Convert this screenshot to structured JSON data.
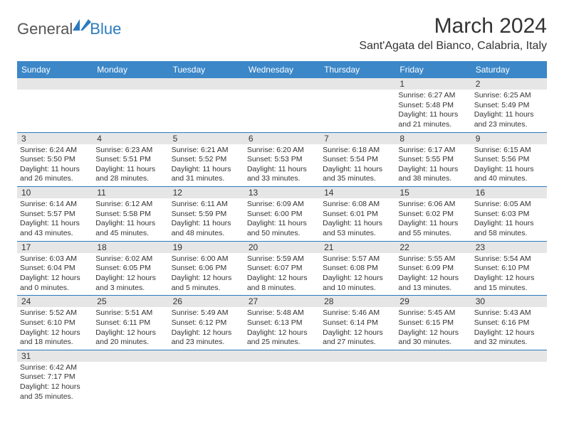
{
  "logo": {
    "general": "General",
    "blue": "Blue"
  },
  "header": {
    "title": "March 2024",
    "location": "Sant'Agata del Bianco, Calabria, Italy"
  },
  "colors": {
    "header_bg": "#3b87c8",
    "header_text": "#ffffff",
    "date_row_bg": "#e6e6e6",
    "cell_border": "#2b7bbf",
    "body_text": "#333333",
    "logo_blue": "#2b7bbf",
    "logo_gray": "#555555"
  },
  "day_names": [
    "Sunday",
    "Monday",
    "Tuesday",
    "Wednesday",
    "Thursday",
    "Friday",
    "Saturday"
  ],
  "weeks": [
    {
      "nums": [
        "",
        "",
        "",
        "",
        "",
        "1",
        "2"
      ],
      "cells": [
        {},
        {},
        {},
        {},
        {},
        {
          "sunrise": "Sunrise: 6:27 AM",
          "sunset": "Sunset: 5:48 PM",
          "day1": "Daylight: 11 hours",
          "day2": "and 21 minutes."
        },
        {
          "sunrise": "Sunrise: 6:25 AM",
          "sunset": "Sunset: 5:49 PM",
          "day1": "Daylight: 11 hours",
          "day2": "and 23 minutes."
        }
      ]
    },
    {
      "nums": [
        "3",
        "4",
        "5",
        "6",
        "7",
        "8",
        "9"
      ],
      "cells": [
        {
          "sunrise": "Sunrise: 6:24 AM",
          "sunset": "Sunset: 5:50 PM",
          "day1": "Daylight: 11 hours",
          "day2": "and 26 minutes."
        },
        {
          "sunrise": "Sunrise: 6:23 AM",
          "sunset": "Sunset: 5:51 PM",
          "day1": "Daylight: 11 hours",
          "day2": "and 28 minutes."
        },
        {
          "sunrise": "Sunrise: 6:21 AM",
          "sunset": "Sunset: 5:52 PM",
          "day1": "Daylight: 11 hours",
          "day2": "and 31 minutes."
        },
        {
          "sunrise": "Sunrise: 6:20 AM",
          "sunset": "Sunset: 5:53 PM",
          "day1": "Daylight: 11 hours",
          "day2": "and 33 minutes."
        },
        {
          "sunrise": "Sunrise: 6:18 AM",
          "sunset": "Sunset: 5:54 PM",
          "day1": "Daylight: 11 hours",
          "day2": "and 35 minutes."
        },
        {
          "sunrise": "Sunrise: 6:17 AM",
          "sunset": "Sunset: 5:55 PM",
          "day1": "Daylight: 11 hours",
          "day2": "and 38 minutes."
        },
        {
          "sunrise": "Sunrise: 6:15 AM",
          "sunset": "Sunset: 5:56 PM",
          "day1": "Daylight: 11 hours",
          "day2": "and 40 minutes."
        }
      ]
    },
    {
      "nums": [
        "10",
        "11",
        "12",
        "13",
        "14",
        "15",
        "16"
      ],
      "cells": [
        {
          "sunrise": "Sunrise: 6:14 AM",
          "sunset": "Sunset: 5:57 PM",
          "day1": "Daylight: 11 hours",
          "day2": "and 43 minutes."
        },
        {
          "sunrise": "Sunrise: 6:12 AM",
          "sunset": "Sunset: 5:58 PM",
          "day1": "Daylight: 11 hours",
          "day2": "and 45 minutes."
        },
        {
          "sunrise": "Sunrise: 6:11 AM",
          "sunset": "Sunset: 5:59 PM",
          "day1": "Daylight: 11 hours",
          "day2": "and 48 minutes."
        },
        {
          "sunrise": "Sunrise: 6:09 AM",
          "sunset": "Sunset: 6:00 PM",
          "day1": "Daylight: 11 hours",
          "day2": "and 50 minutes."
        },
        {
          "sunrise": "Sunrise: 6:08 AM",
          "sunset": "Sunset: 6:01 PM",
          "day1": "Daylight: 11 hours",
          "day2": "and 53 minutes."
        },
        {
          "sunrise": "Sunrise: 6:06 AM",
          "sunset": "Sunset: 6:02 PM",
          "day1": "Daylight: 11 hours",
          "day2": "and 55 minutes."
        },
        {
          "sunrise": "Sunrise: 6:05 AM",
          "sunset": "Sunset: 6:03 PM",
          "day1": "Daylight: 11 hours",
          "day2": "and 58 minutes."
        }
      ]
    },
    {
      "nums": [
        "17",
        "18",
        "19",
        "20",
        "21",
        "22",
        "23"
      ],
      "cells": [
        {
          "sunrise": "Sunrise: 6:03 AM",
          "sunset": "Sunset: 6:04 PM",
          "day1": "Daylight: 12 hours",
          "day2": "and 0 minutes."
        },
        {
          "sunrise": "Sunrise: 6:02 AM",
          "sunset": "Sunset: 6:05 PM",
          "day1": "Daylight: 12 hours",
          "day2": "and 3 minutes."
        },
        {
          "sunrise": "Sunrise: 6:00 AM",
          "sunset": "Sunset: 6:06 PM",
          "day1": "Daylight: 12 hours",
          "day2": "and 5 minutes."
        },
        {
          "sunrise": "Sunrise: 5:59 AM",
          "sunset": "Sunset: 6:07 PM",
          "day1": "Daylight: 12 hours",
          "day2": "and 8 minutes."
        },
        {
          "sunrise": "Sunrise: 5:57 AM",
          "sunset": "Sunset: 6:08 PM",
          "day1": "Daylight: 12 hours",
          "day2": "and 10 minutes."
        },
        {
          "sunrise": "Sunrise: 5:55 AM",
          "sunset": "Sunset: 6:09 PM",
          "day1": "Daylight: 12 hours",
          "day2": "and 13 minutes."
        },
        {
          "sunrise": "Sunrise: 5:54 AM",
          "sunset": "Sunset: 6:10 PM",
          "day1": "Daylight: 12 hours",
          "day2": "and 15 minutes."
        }
      ]
    },
    {
      "nums": [
        "24",
        "25",
        "26",
        "27",
        "28",
        "29",
        "30"
      ],
      "cells": [
        {
          "sunrise": "Sunrise: 5:52 AM",
          "sunset": "Sunset: 6:10 PM",
          "day1": "Daylight: 12 hours",
          "day2": "and 18 minutes."
        },
        {
          "sunrise": "Sunrise: 5:51 AM",
          "sunset": "Sunset: 6:11 PM",
          "day1": "Daylight: 12 hours",
          "day2": "and 20 minutes."
        },
        {
          "sunrise": "Sunrise: 5:49 AM",
          "sunset": "Sunset: 6:12 PM",
          "day1": "Daylight: 12 hours",
          "day2": "and 23 minutes."
        },
        {
          "sunrise": "Sunrise: 5:48 AM",
          "sunset": "Sunset: 6:13 PM",
          "day1": "Daylight: 12 hours",
          "day2": "and 25 minutes."
        },
        {
          "sunrise": "Sunrise: 5:46 AM",
          "sunset": "Sunset: 6:14 PM",
          "day1": "Daylight: 12 hours",
          "day2": "and 27 minutes."
        },
        {
          "sunrise": "Sunrise: 5:45 AM",
          "sunset": "Sunset: 6:15 PM",
          "day1": "Daylight: 12 hours",
          "day2": "and 30 minutes."
        },
        {
          "sunrise": "Sunrise: 5:43 AM",
          "sunset": "Sunset: 6:16 PM",
          "day1": "Daylight: 12 hours",
          "day2": "and 32 minutes."
        }
      ]
    },
    {
      "nums": [
        "31",
        "",
        "",
        "",
        "",
        "",
        ""
      ],
      "cells": [
        {
          "sunrise": "Sunrise: 6:42 AM",
          "sunset": "Sunset: 7:17 PM",
          "day1": "Daylight: 12 hours",
          "day2": "and 35 minutes."
        },
        {},
        {},
        {},
        {},
        {},
        {}
      ],
      "last": true
    }
  ]
}
